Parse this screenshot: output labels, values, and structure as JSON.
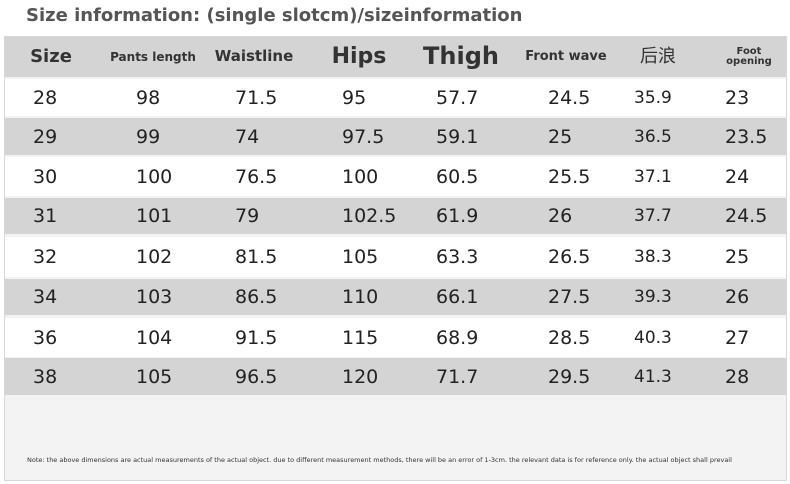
{
  "title": "Size information: (single slotcm)/sizeinformation",
  "table": {
    "header": [
      "Size",
      "Pants length",
      "Waistline",
      "Hips",
      "Thigh",
      "Front wave",
      "后浪",
      "Foot opening"
    ],
    "rows": [
      [
        28,
        98,
        71.5,
        95,
        57.7,
        24.5,
        35.9,
        23
      ],
      [
        29,
        99,
        74,
        97.5,
        59.1,
        25,
        36.5,
        23.5
      ],
      [
        30,
        100,
        76.5,
        100,
        60.5,
        25.5,
        37.1,
        24
      ],
      [
        31,
        101,
        79,
        102.5,
        61.9,
        26,
        37.7,
        24.5
      ],
      [
        32,
        102,
        81.5,
        105,
        63.3,
        26.5,
        38.3,
        25
      ],
      [
        34,
        103,
        86.5,
        110,
        66.1,
        27.5,
        39.3,
        26
      ],
      [
        36,
        104,
        91.5,
        115,
        68.9,
        28.5,
        40.3,
        27
      ],
      [
        38,
        105,
        96.5,
        120,
        71.7,
        29.5,
        41.3,
        28
      ]
    ]
  },
  "note": "Note: the above dimensions are actual measurements of the actual object. due to different measurement methods, there will be an error of 1-3cm. the relevant data is for reference only. the actual object shall prevail"
}
